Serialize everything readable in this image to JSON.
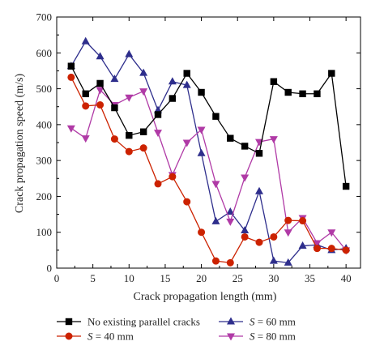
{
  "chart_data": {
    "type": "line",
    "xlabel": "Crack propagation length (mm)",
    "ylabel": "Crack propagation speed (m/s)",
    "xlim": [
      0,
      42
    ],
    "ylim": [
      0,
      700
    ],
    "x_ticks": [
      0,
      5,
      10,
      15,
      20,
      25,
      30,
      35,
      40
    ],
    "y_ticks": [
      0,
      100,
      200,
      300,
      400,
      500,
      600,
      700
    ],
    "grid": false,
    "legend_position": "bottom",
    "series": [
      {
        "name": "No existing parallel cracks",
        "legend_symbol": "",
        "legend_suffix": "",
        "color": "#000000",
        "marker": "square",
        "x": [
          2,
          4,
          6,
          8,
          10,
          12,
          14,
          16,
          18,
          20,
          22,
          24,
          26,
          28,
          30,
          32,
          34,
          36,
          38,
          40
        ],
        "y": [
          563,
          486,
          515,
          447,
          370,
          380,
          428,
          473,
          543,
          490,
          423,
          362,
          340,
          320,
          520,
          490,
          486,
          486,
          543,
          228
        ]
      },
      {
        "name": "S = 40 mm",
        "legend_symbol": "S",
        "legend_suffix": " = 40 mm",
        "color": "#cc2200",
        "marker": "circle",
        "x": [
          2,
          4,
          6,
          8,
          10,
          12,
          14,
          16,
          18,
          20,
          22,
          24,
          26,
          28,
          30,
          32,
          34,
          36,
          38,
          40
        ],
        "y": [
          532,
          452,
          455,
          360,
          325,
          335,
          235,
          255,
          185,
          100,
          20,
          15,
          87,
          72,
          87,
          133,
          132,
          55,
          55,
          50
        ]
      },
      {
        "name": "S = 60 mm",
        "legend_symbol": "S",
        "legend_suffix": " = 60 mm",
        "color": "#2e2e8c",
        "marker": "triangle-up",
        "x": [
          2,
          4,
          6,
          8,
          10,
          12,
          14,
          16,
          18,
          20,
          22,
          24,
          26,
          28,
          30,
          32,
          34,
          36,
          38,
          40
        ],
        "y": [
          563,
          632,
          590,
          527,
          596,
          544,
          440,
          520,
          510,
          320,
          130,
          157,
          105,
          214,
          20,
          15,
          62,
          65,
          50,
          55
        ]
      },
      {
        "name": "S = 80 mm",
        "legend_symbol": "S",
        "legend_suffix": " = 80 mm",
        "color": "#b03aa6",
        "marker": "triangle-down",
        "x": [
          2,
          4,
          6,
          8,
          10,
          12,
          14,
          16,
          18,
          20,
          22,
          24,
          26,
          28,
          30,
          32,
          34,
          36,
          38,
          40
        ],
        "y": [
          390,
          362,
          497,
          455,
          476,
          493,
          378,
          260,
          350,
          386,
          235,
          130,
          253,
          352,
          360,
          100,
          140,
          70,
          100,
          50
        ]
      }
    ]
  }
}
